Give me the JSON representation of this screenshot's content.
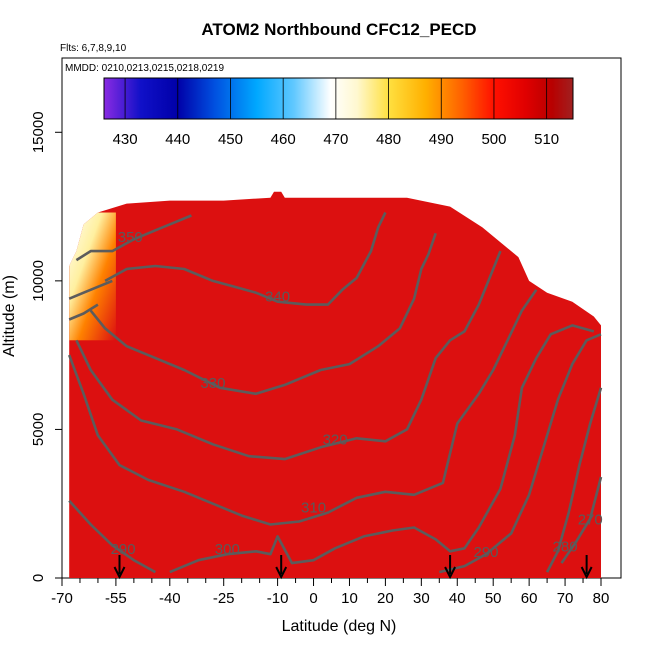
{
  "chart_data": {
    "type": "heatmap",
    "title": "ATOM2 Northbound CFC12_PECD",
    "flights_label": "Flts: 6,7,8,9,10",
    "dates_label": "MMDD: 0210,0213,0215,0218,0219",
    "xlabel": "Latitude (deg N)",
    "ylabel": "Altitude (m)",
    "xlim": [
      -70,
      82
    ],
    "ylim": [
      0,
      17500
    ],
    "x_ticks": [
      -70,
      -55,
      -40,
      -25,
      -10,
      0,
      10,
      20,
      30,
      40,
      50,
      60,
      70,
      80
    ],
    "x_minor_ticks": [
      -65,
      -60,
      -50,
      -45,
      -35,
      -30,
      -20,
      -15,
      -5,
      5,
      15,
      25,
      35,
      45,
      55,
      65,
      75
    ],
    "y_ticks": [
      0,
      5000,
      10000,
      15000
    ],
    "colorbar": {
      "ticks": [
        430,
        440,
        450,
        460,
        470,
        480,
        490,
        500,
        510
      ],
      "range": [
        426,
        515
      ],
      "stops": [
        {
          "value": 426,
          "color": "#8a2be2"
        },
        {
          "value": 433,
          "color": "#1010c8"
        },
        {
          "value": 440,
          "color": "#0000a8"
        },
        {
          "value": 447,
          "color": "#0050e0"
        },
        {
          "value": 455,
          "color": "#00a8ff"
        },
        {
          "value": 462,
          "color": "#60c8ff"
        },
        {
          "value": 469,
          "color": "#ffffff"
        },
        {
          "value": 474,
          "color": "#fff8d0"
        },
        {
          "value": 480,
          "color": "#ffe040"
        },
        {
          "value": 487,
          "color": "#ffb000"
        },
        {
          "value": 494,
          "color": "#ff6000"
        },
        {
          "value": 500,
          "color": "#ff1000"
        },
        {
          "value": 506,
          "color": "#e00000"
        },
        {
          "value": 511,
          "color": "#b80000"
        },
        {
          "value": 515,
          "color": "#a02020"
        }
      ]
    },
    "field_color": "#dc1010",
    "data_envelope": [
      [
        -68,
        10500
      ],
      [
        -66,
        11000
      ],
      [
        -64,
        11900
      ],
      [
        -60,
        12300
      ],
      [
        -52,
        12600
      ],
      [
        -40,
        12700
      ],
      [
        -25,
        12700
      ],
      [
        -12,
        12800
      ],
      [
        -11,
        13000
      ],
      [
        -9,
        13000
      ],
      [
        -8,
        12800
      ],
      [
        10,
        12800
      ],
      [
        26,
        12800
      ],
      [
        38,
        12500
      ],
      [
        47,
        11800
      ],
      [
        57,
        10800
      ],
      [
        60,
        10000
      ],
      [
        65,
        9600
      ],
      [
        72,
        9300
      ],
      [
        78,
        8800
      ],
      [
        80,
        8500
      ],
      [
        80,
        0
      ],
      [
        -68,
        0
      ]
    ],
    "high_values_region": [
      {
        "lat_range": [
          -68,
          -55
        ],
        "alt_range": [
          8000,
          12300
        ],
        "value_range": [
          470,
          495
        ]
      }
    ],
    "contours": [
      {
        "label": "270",
        "label_at": [
          77,
          1800
        ],
        "points": [
          [
            69,
            500
          ],
          [
            73,
            1200
          ],
          [
            77,
            2000
          ],
          [
            80,
            3400
          ]
        ]
      },
      {
        "label": "280",
        "label_at": [
          70,
          900
        ],
        "points": [
          [
            65,
            200
          ],
          [
            68,
            900
          ],
          [
            71,
            2200
          ],
          [
            74,
            3800
          ],
          [
            77,
            5200
          ],
          [
            80,
            6400
          ]
        ]
      },
      {
        "label": "290",
        "label_at": [
          -53,
          800
        ],
        "points": [
          [
            -68,
            2600
          ],
          [
            -62,
            1800
          ],
          [
            -56,
            1100
          ],
          [
            -50,
            600
          ],
          [
            -44,
            200
          ]
        ]
      },
      {
        "label": "290",
        "label_at": [
          48,
          700
        ],
        "points": [
          [
            35,
            200
          ],
          [
            42,
            400
          ],
          [
            48,
            800
          ],
          [
            55,
            1500
          ],
          [
            60,
            2800
          ],
          [
            64,
            4400
          ],
          [
            68,
            6000
          ],
          [
            72,
            7200
          ],
          [
            76,
            8000
          ],
          [
            80,
            8200
          ]
        ]
      },
      {
        "label": "300",
        "label_at": [
          -24,
          800
        ],
        "points": [
          [
            -40,
            200
          ],
          [
            -32,
            600
          ],
          [
            -24,
            800
          ],
          [
            -16,
            900
          ],
          [
            -12,
            800
          ],
          [
            -10,
            1400
          ],
          [
            -6,
            500
          ],
          [
            0,
            600
          ],
          [
            6,
            1000
          ],
          [
            14,
            1400
          ],
          [
            22,
            1600
          ],
          [
            28,
            1700
          ],
          [
            34,
            1300
          ],
          [
            38,
            900
          ],
          [
            42,
            1000
          ],
          [
            46,
            1700
          ],
          [
            52,
            3000
          ],
          [
            56,
            4800
          ],
          [
            58,
            6400
          ],
          [
            62,
            7400
          ],
          [
            66,
            8200
          ],
          [
            72,
            8500
          ],
          [
            78,
            8300
          ]
        ]
      },
      {
        "label": "310",
        "label_at": [
          0,
          2200
        ],
        "points": [
          [
            -68,
            7500
          ],
          [
            -64,
            6200
          ],
          [
            -60,
            4800
          ],
          [
            -54,
            3800
          ],
          [
            -46,
            3300
          ],
          [
            -36,
            2900
          ],
          [
            -28,
            2500
          ],
          [
            -20,
            2100
          ],
          [
            -12,
            1800
          ],
          [
            -4,
            1900
          ],
          [
            4,
            2200
          ],
          [
            12,
            2700
          ],
          [
            20,
            2900
          ],
          [
            28,
            2800
          ],
          [
            36,
            3200
          ],
          [
            40,
            5200
          ],
          [
            46,
            6200
          ],
          [
            50,
            7000
          ],
          [
            54,
            8000
          ],
          [
            58,
            9000
          ],
          [
            62,
            9700
          ]
        ]
      },
      {
        "label": "320",
        "label_at": [
          6,
          4500
        ],
        "points": [
          [
            -66,
            8000
          ],
          [
            -62,
            7000
          ],
          [
            -56,
            6000
          ],
          [
            -48,
            5300
          ],
          [
            -38,
            5000
          ],
          [
            -28,
            4500
          ],
          [
            -18,
            4100
          ],
          [
            -8,
            4000
          ],
          [
            2,
            4400
          ],
          [
            12,
            4700
          ],
          [
            20,
            4600
          ],
          [
            26,
            5000
          ],
          [
            30,
            6000
          ],
          [
            34,
            7400
          ],
          [
            38,
            8000
          ],
          [
            42,
            8300
          ],
          [
            46,
            9200
          ],
          [
            50,
            10400
          ],
          [
            52,
            11000
          ]
        ]
      },
      {
        "label": "330",
        "label_at": [
          -28,
          6400
        ],
        "points": [
          [
            -62,
            9000
          ],
          [
            -58,
            8400
          ],
          [
            -52,
            7800
          ],
          [
            -44,
            7400
          ],
          [
            -36,
            7000
          ],
          [
            -26,
            6400
          ],
          [
            -16,
            6200
          ],
          [
            -8,
            6500
          ],
          [
            2,
            7000
          ],
          [
            10,
            7200
          ],
          [
            18,
            7800
          ],
          [
            24,
            8400
          ],
          [
            28,
            9400
          ],
          [
            30,
            10400
          ],
          [
            32,
            10900
          ],
          [
            34,
            11600
          ]
        ]
      },
      {
        "label": "340",
        "label_at": [
          -10,
          9300
        ],
        "points": [
          [
            -58,
            10000
          ],
          [
            -52,
            10400
          ],
          [
            -44,
            10500
          ],
          [
            -36,
            10400
          ],
          [
            -28,
            10000
          ],
          [
            -22,
            9800
          ],
          [
            -16,
            9600
          ],
          [
            -10,
            9300
          ],
          [
            -2,
            9200
          ],
          [
            4,
            9200
          ],
          [
            8,
            9700
          ],
          [
            12,
            10100
          ],
          [
            16,
            11000
          ],
          [
            18,
            11800
          ],
          [
            20,
            12300
          ]
        ]
      },
      {
        "label": "350",
        "label_at": [
          -51,
          11300
        ],
        "points": [
          [
            -66,
            10700
          ],
          [
            -62,
            11000
          ],
          [
            -56,
            11000
          ],
          [
            -50,
            11400
          ],
          [
            -44,
            11700
          ],
          [
            -38,
            12000
          ],
          [
            -34,
            12200
          ]
        ]
      },
      {
        "label": "",
        "label_at": [
          0,
          0
        ],
        "points": [
          [
            -68,
            9400
          ],
          [
            -64,
            9600
          ],
          [
            -60,
            9800
          ],
          [
            -56,
            10000
          ]
        ]
      },
      {
        "label": "",
        "label_at": [
          0,
          0
        ],
        "points": [
          [
            -68,
            8700
          ],
          [
            -64,
            8900
          ],
          [
            -60,
            9200
          ]
        ]
      }
    ],
    "flight_markers": {
      "type": "arrow",
      "x": [
        -54,
        -9,
        38,
        76
      ]
    },
    "grid": false,
    "legend": "colorbar-top"
  }
}
